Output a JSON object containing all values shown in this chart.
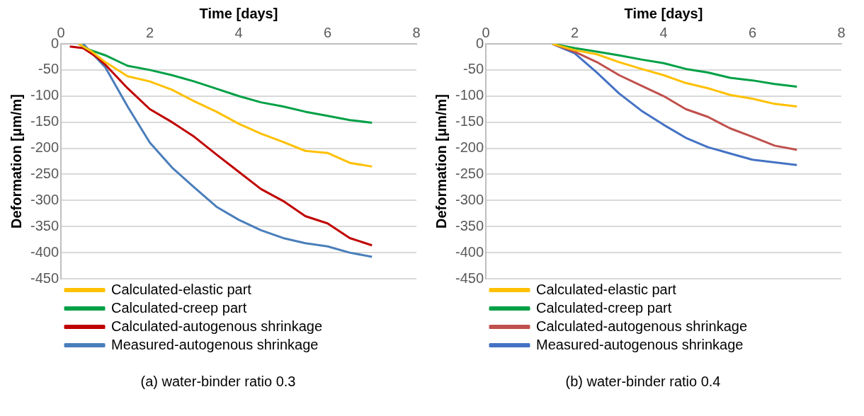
{
  "chart_data": [
    {
      "type": "line",
      "xlabel": "Time [days]",
      "ylabel": "Deformation [μm/m]",
      "xlim": [
        0,
        8
      ],
      "xticks": [
        0,
        2,
        4,
        6,
        8
      ],
      "ylim": [
        -450,
        0
      ],
      "yticks": [
        -450,
        -400,
        -350,
        -300,
        -250,
        -200,
        -150,
        -100,
        -50,
        0
      ],
      "grid": "y",
      "legend": "bottom",
      "marker": "none",
      "line_style": "solid",
      "annotations": [
        "(a) water-binder ratio 0.3"
      ],
      "series": [
        {
          "name": "Calculated-elastic part",
          "color": "#ffc000",
          "x": [
            0.4,
            0.7,
            1,
            1.5,
            2,
            2.5,
            3,
            3.5,
            4,
            4.5,
            5,
            5.5,
            6,
            6.5,
            7
          ],
          "values": [
            0,
            -15,
            -35,
            -62,
            -72,
            -88,
            -110,
            -130,
            -153,
            -172,
            -188,
            -205,
            -209,
            -228,
            -235
          ]
        },
        {
          "name": "Calculated-creep part",
          "color": "#00a046",
          "x": [
            0.4,
            0.6,
            1,
            1.5,
            2,
            2.5,
            3,
            3.5,
            4,
            4.5,
            5,
            5.5,
            6,
            6.5,
            7
          ],
          "values": [
            0,
            -10,
            -22,
            -42,
            -50,
            -60,
            -72,
            -86,
            -100,
            -112,
            -120,
            -130,
            -138,
            -146,
            -151
          ]
        },
        {
          "name": "Calculated-autogenous shrinkage",
          "color": "#c00000",
          "x": [
            0.2,
            0.5,
            0.8,
            1,
            1.5,
            2,
            2.5,
            3,
            3.5,
            4,
            4.5,
            5,
            5.5,
            6,
            6.5,
            7
          ],
          "values": [
            -5,
            -8,
            -25,
            -40,
            -85,
            -125,
            -150,
            -178,
            -212,
            -245,
            -278,
            -301,
            -330,
            -344,
            -372,
            -386
          ]
        },
        {
          "name": "Measured-autogenous shrinkage",
          "color": "#4a7ebb",
          "x": [
            0.5,
            1,
            1.5,
            2,
            2.5,
            3,
            3.5,
            4,
            4.5,
            5,
            5.5,
            6,
            6.5,
            7
          ],
          "values": [
            0,
            -45,
            -120,
            -189,
            -237,
            -275,
            -312,
            -337,
            -357,
            -372,
            -382,
            -388,
            -400,
            -408
          ]
        }
      ]
    },
    {
      "type": "line",
      "xlabel": "Time [days]",
      "ylabel": "Deformation [μm/m]",
      "xlim": [
        0,
        8
      ],
      "xticks": [
        0,
        2,
        4,
        6,
        8
      ],
      "ylim": [
        -450,
        0
      ],
      "yticks": [
        -450,
        -400,
        -350,
        -300,
        -250,
        -200,
        -150,
        -100,
        -50,
        0
      ],
      "grid": "y",
      "legend": "bottom",
      "marker": "none",
      "line_style": "solid",
      "annotations": [
        "(b) water-binder ratio 0.4"
      ],
      "series": [
        {
          "name": "Calculated-elastic part",
          "color": "#ffc000",
          "x": [
            1.5,
            2,
            2.5,
            3,
            3.5,
            4,
            4.5,
            5,
            5.5,
            6,
            6.5,
            7
          ],
          "values": [
            0,
            -12,
            -20,
            -35,
            -48,
            -60,
            -75,
            -85,
            -98,
            -105,
            -115,
            -120
          ]
        },
        {
          "name": "Calculated-creep part",
          "color": "#00a046",
          "x": [
            1.5,
            2,
            2.5,
            3,
            3.5,
            4,
            4.5,
            5,
            5.5,
            6,
            6.5,
            7
          ],
          "values": [
            0,
            -8,
            -15,
            -22,
            -30,
            -37,
            -48,
            -55,
            -65,
            -70,
            -77,
            -82
          ]
        },
        {
          "name": "Calculated-autogenous shrinkage",
          "color": "#c0504d",
          "x": [
            1.5,
            2,
            2.5,
            3,
            3.5,
            4,
            4.5,
            5,
            5.5,
            6,
            6.5,
            7
          ],
          "values": [
            0,
            -15,
            -35,
            -60,
            -80,
            -100,
            -125,
            -140,
            -162,
            -178,
            -195,
            -203
          ]
        },
        {
          "name": "Measured-autogenous shrinkage",
          "color": "#4472c4",
          "x": [
            1.5,
            2,
            2.5,
            3,
            3.5,
            4,
            4.5,
            5,
            5.5,
            6,
            6.5,
            7
          ],
          "values": [
            0,
            -18,
            -55,
            -95,
            -128,
            -155,
            -180,
            -198,
            -210,
            -222,
            -227,
            -232
          ]
        }
      ]
    }
  ]
}
